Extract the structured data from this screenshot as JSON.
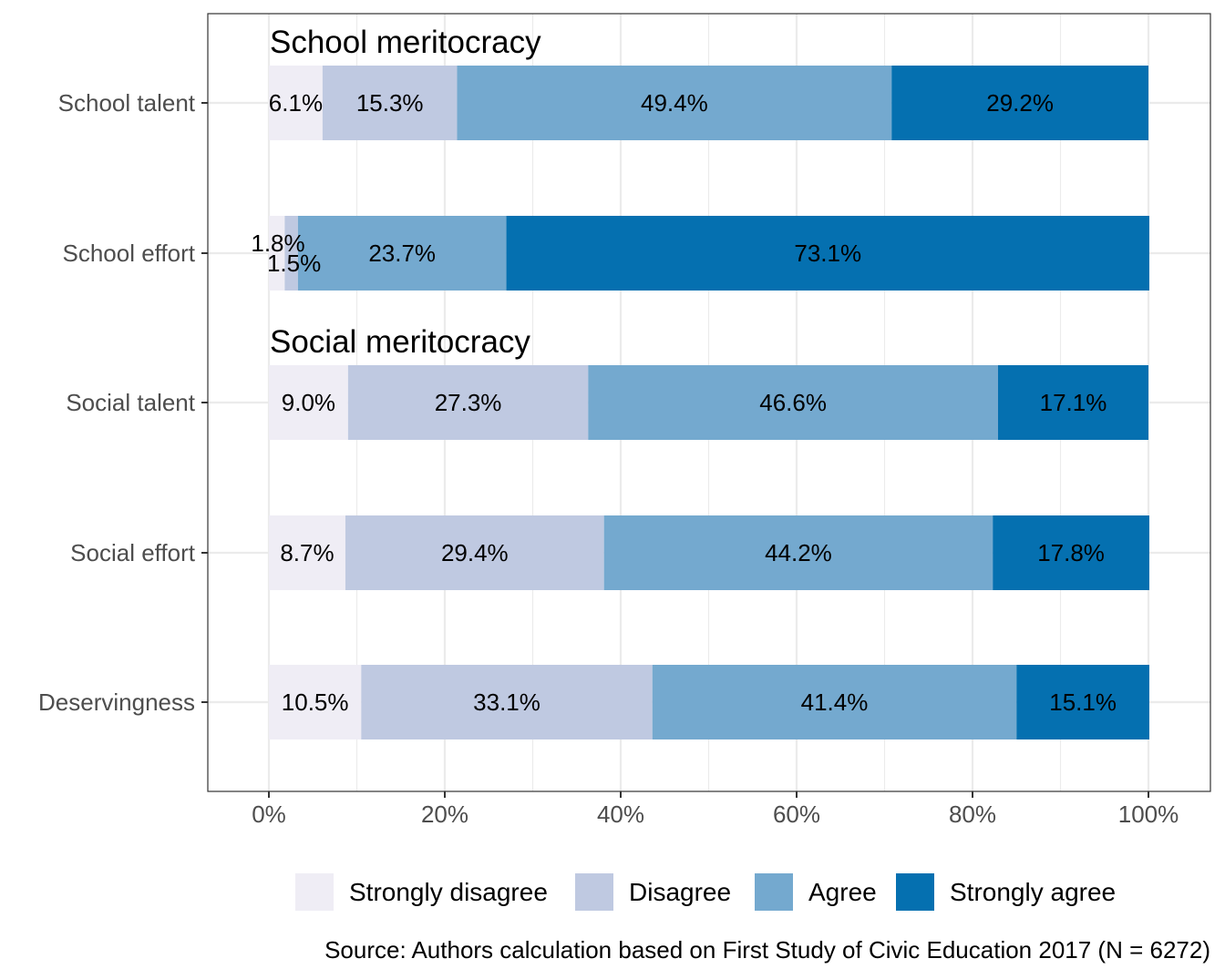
{
  "chart_data": {
    "type": "bar",
    "orientation": "horizontal",
    "stacked": true,
    "categories": [
      "School talent",
      "School effort",
      "Social talent",
      "Social effort",
      "Deservingness"
    ],
    "series": [
      {
        "name": "Strongly disagree",
        "color": "#efedf5",
        "values": [
          6.1,
          1.8,
          9.0,
          8.7,
          10.5
        ]
      },
      {
        "name": "Disagree",
        "color": "#bfc9e1",
        "values": [
          15.3,
          1.5,
          27.3,
          29.4,
          33.1
        ]
      },
      {
        "name": "Agree",
        "color": "#74a9cf",
        "values": [
          49.4,
          23.7,
          46.6,
          44.2,
          41.4
        ]
      },
      {
        "name": "Strongly agree",
        "color": "#0570b0",
        "values": [
          29.2,
          73.1,
          17.1,
          17.8,
          15.1
        ]
      }
    ],
    "xlim": [
      0,
      100
    ],
    "x_ticks": [
      "0%",
      "20%",
      "40%",
      "60%",
      "80%",
      "100%"
    ],
    "group_titles": [
      {
        "text": "School meritocracy",
        "before_category": "School talent"
      },
      {
        "text": "Social meritocracy",
        "before_category": "Social talent"
      }
    ],
    "legend_position": "bottom",
    "grid": true,
    "caption": "Source: Authors calculation based on First Study of Civic Education 2017 (N = 6272)"
  }
}
